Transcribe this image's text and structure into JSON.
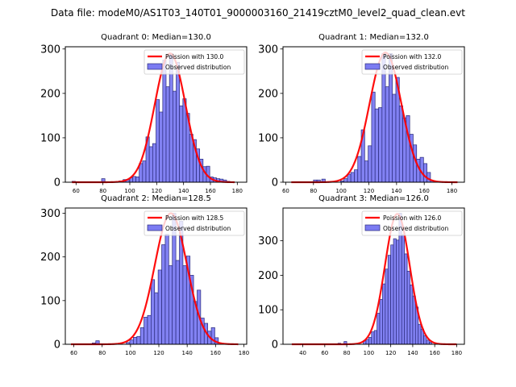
{
  "figure": {
    "suptitle": "Data file: modeM0/AS1T03_140T01_9000003160_21419cztM0_level2_quad_clean.evt"
  },
  "colors": {
    "bar_fill": "#7b7bf2",
    "bar_edge": "#2a2a7a",
    "poisson_line": "#ff0000"
  },
  "chart_data": [
    {
      "type": "bar",
      "title": "Quadrant 0: Median=130.0",
      "xlabel": "",
      "ylabel": "",
      "xlim": [
        52,
        187
      ],
      "ylim": [
        0,
        305
      ],
      "xticks": [
        60,
        80,
        100,
        120,
        140,
        160,
        180
      ],
      "yticks": [
        0,
        100,
        200,
        300
      ],
      "legend": {
        "position": "top-right",
        "entries": [
          "Poission with 130.0",
          "Observed distribution"
        ]
      },
      "bin_width": 2.5,
      "histogram": {
        "bin_starts": [
          57,
          79,
          92,
          95,
          97,
          100,
          102,
          104.5,
          107,
          109.5,
          112,
          114.5,
          117,
          119.5,
          122,
          124.5,
          127,
          129.5,
          132,
          134.5,
          137,
          139.5,
          142,
          144.5,
          147,
          149.5,
          152,
          154.5,
          157,
          159.5,
          162,
          164.5,
          167,
          169.5,
          172
        ],
        "values": [
          2,
          8,
          3,
          6,
          6,
          10,
          13,
          12,
          42,
          48,
          102,
          80,
          87,
          186,
          158,
          275,
          215,
          290,
          205,
          270,
          172,
          188,
          155,
          108,
          96,
          75,
          52,
          35,
          36,
          12,
          10,
          8,
          7,
          5,
          2
        ]
      },
      "poisson": {
        "label": "Poission with 130.0",
        "mean": 130.0,
        "peak": 290,
        "x_range": [
          57,
          178
        ]
      }
    },
    {
      "type": "bar",
      "title": "Quadrant 1: Median=132.0",
      "xlabel": "",
      "ylabel": "",
      "xlim": [
        58,
        189
      ],
      "ylim": [
        0,
        305
      ],
      "xticks": [
        60,
        80,
        100,
        120,
        140,
        160,
        180
      ],
      "yticks": [
        0,
        100,
        200,
        300
      ],
      "legend": {
        "position": "top-right",
        "entries": [
          "Poission with 132.0",
          "Observed distribution"
        ]
      },
      "bin_width": 2.5,
      "histogram": {
        "bin_starts": [
          80,
          82.5,
          86,
          99.5,
          102,
          104.5,
          107,
          109.5,
          112,
          114.5,
          117,
          119.5,
          122,
          124.5,
          127,
          129.5,
          132,
          134.5,
          137,
          139.5,
          142,
          144.5,
          147,
          149.5,
          152,
          154.5,
          157,
          159.5,
          162,
          164.5
        ],
        "values": [
          5,
          5,
          7,
          3,
          8,
          18,
          22,
          28,
          58,
          118,
          48,
          82,
          203,
          165,
          168,
          290,
          215,
          290,
          198,
          236,
          172,
          145,
          150,
          108,
          84,
          52,
          56,
          42,
          22,
          4
        ]
      },
      "poisson": {
        "label": "Poission with 132.0",
        "mean": 132.0,
        "peak": 292,
        "x_range": [
          64,
          184
        ]
      }
    },
    {
      "type": "bar",
      "title": "Quadrant 2: Median=128.5",
      "xlabel": "",
      "ylabel": "",
      "xlim": [
        54,
        182
      ],
      "ylim": [
        0,
        312
      ],
      "xticks": [
        60,
        80,
        100,
        120,
        140,
        160,
        180
      ],
      "yticks": [
        0,
        100,
        200,
        300
      ],
      "legend": {
        "position": "top-right",
        "entries": [
          "Poission with 128.5",
          "Observed distribution"
        ]
      },
      "bin_width": 2.5,
      "histogram": {
        "bin_starts": [
          73,
          75.5,
          97,
          99.5,
          102,
          104.5,
          107,
          109.5,
          112,
          114.5,
          117,
          119.5,
          122,
          124.5,
          127,
          129.5,
          132,
          134.5,
          137,
          139.5,
          142,
          144.5,
          147,
          149.5,
          152,
          154.5,
          157,
          159.5
        ],
        "values": [
          3,
          8,
          4,
          10,
          16,
          18,
          38,
          62,
          66,
          148,
          118,
          170,
          228,
          252,
          180,
          300,
          192,
          282,
          180,
          202,
          158,
          98,
          124,
          60,
          48,
          30,
          38,
          15
        ]
      },
      "poisson": {
        "label": "Poission with 128.5",
        "mean": 128.5,
        "peak": 300,
        "x_range": [
          58,
          176
        ]
      }
    },
    {
      "type": "bar",
      "title": "Quadrant 3: Median=126.0",
      "xlabel": "",
      "ylabel": "",
      "xlim": [
        22,
        187
      ],
      "ylim": [
        0,
        395
      ],
      "xticks": [
        40,
        60,
        80,
        100,
        120,
        140,
        160,
        180
      ],
      "yticks": [
        0,
        100,
        200,
        300
      ],
      "legend": {
        "position": "top-right",
        "entries": [
          "Poission with 126.0",
          "Observed distribution"
        ]
      },
      "bin_width": 2.5,
      "histogram": {
        "bin_starts": [
          72,
          77.5,
          95,
          97.5,
          100,
          102.5,
          105,
          107.5,
          110,
          112.5,
          115,
          117.5,
          120,
          122.5,
          125,
          127.5,
          130,
          132.5,
          135,
          137.5,
          140,
          142.5,
          145,
          147.5,
          150,
          152.5,
          155
        ],
        "values": [
          3,
          8,
          10,
          14,
          20,
          36,
          40,
          90,
          130,
          175,
          218,
          258,
          288,
          306,
          302,
          380,
          318,
          262,
          212,
          172,
          140,
          108,
          58,
          44,
          25,
          12,
          6
        ]
      },
      "poisson": {
        "label": "Poission with 126.0",
        "mean": 126.0,
        "peak": 378,
        "x_range": [
          30,
          180
        ]
      }
    }
  ]
}
